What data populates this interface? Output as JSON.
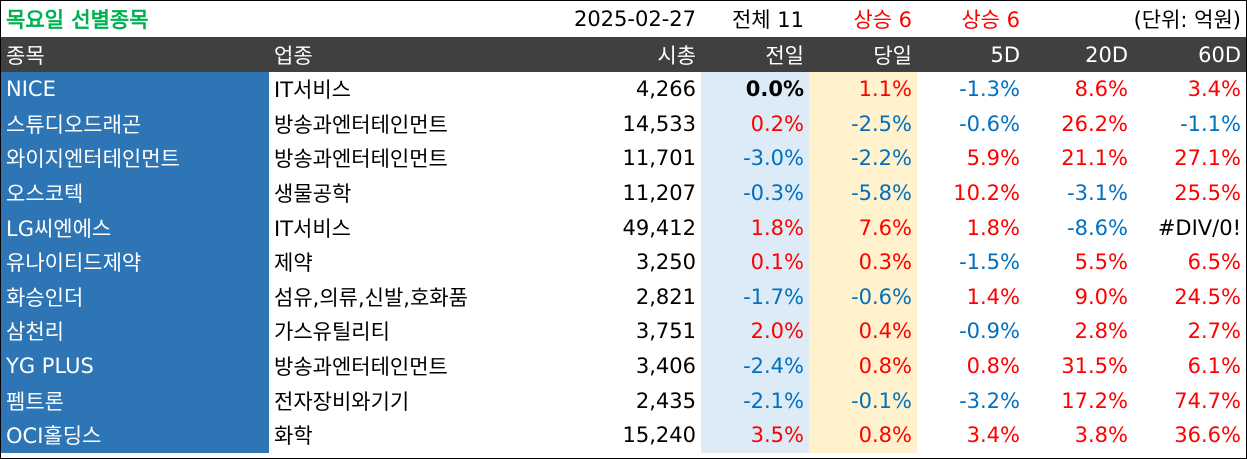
{
  "title": {
    "name": "목요일 선별종목",
    "date": "2025-02-27",
    "total": "전체 11",
    "up_count_1": "상승 6",
    "up_count_2": "상승 6",
    "unit": "(단위: 억원)"
  },
  "colors": {
    "title_green": "#00b050",
    "header_bg": "#404040",
    "name_bg": "#2e75b6",
    "prev_bg": "#ddebf7",
    "today_bg": "#fff2cc",
    "up_red": "#ff0000",
    "down_blue": "#0070c0"
  },
  "headers": [
    "종목",
    "업종",
    "시총",
    "전일",
    "당일",
    "5D",
    "20D",
    "60D"
  ],
  "rows": [
    {
      "name": "NICE",
      "sector": "IT서비스",
      "cap": "4,266",
      "prev": "0.0%",
      "today": "1.1%",
      "d5": "-1.3%",
      "d20": "8.6%",
      "d60": "3.4%"
    },
    {
      "name": "스튜디오드래곤",
      "sector": "방송과엔터테인먼트",
      "cap": "14,533",
      "prev": "0.2%",
      "today": "-2.5%",
      "d5": "-0.6%",
      "d20": "26.2%",
      "d60": "-1.1%"
    },
    {
      "name": "와이지엔터테인먼트",
      "sector": "방송과엔터테인먼트",
      "cap": "11,701",
      "prev": "-3.0%",
      "today": "-2.2%",
      "d5": "5.9%",
      "d20": "21.1%",
      "d60": "27.1%"
    },
    {
      "name": "오스코텍",
      "sector": "생물공학",
      "cap": "11,207",
      "prev": "-0.3%",
      "today": "-5.8%",
      "d5": "10.2%",
      "d20": "-3.1%",
      "d60": "25.5%"
    },
    {
      "name": "LG씨엔에스",
      "sector": "IT서비스",
      "cap": "49,412",
      "prev": "1.8%",
      "today": "7.6%",
      "d5": "1.8%",
      "d20": "-8.6%",
      "d60": "#DIV/0!"
    },
    {
      "name": "유나이티드제약",
      "sector": "제약",
      "cap": "3,250",
      "prev": "0.1%",
      "today": "0.3%",
      "d5": "-1.5%",
      "d20": "5.5%",
      "d60": "6.5%"
    },
    {
      "name": "화승인더",
      "sector": "섬유,의류,신발,호화품",
      "cap": "2,821",
      "prev": "-1.7%",
      "today": "-0.6%",
      "d5": "1.4%",
      "d20": "9.0%",
      "d60": "24.5%"
    },
    {
      "name": "삼천리",
      "sector": "가스유틸리티",
      "cap": "3,751",
      "prev": "2.0%",
      "today": "0.4%",
      "d5": "-0.9%",
      "d20": "2.8%",
      "d60": "2.7%"
    },
    {
      "name": "YG PLUS",
      "sector": "방송과엔터테인먼트",
      "cap": "3,406",
      "prev": "-2.4%",
      "today": "0.8%",
      "d5": "0.8%",
      "d20": "31.5%",
      "d60": "6.1%"
    },
    {
      "name": "펨트론",
      "sector": "전자장비와기기",
      "cap": "2,435",
      "prev": "-2.1%",
      "today": "-0.1%",
      "d5": "-3.2%",
      "d20": "17.2%",
      "d60": "74.7%"
    },
    {
      "name": "OCI홀딩스",
      "sector": "화학",
      "cap": "15,240",
      "prev": "3.5%",
      "today": "0.8%",
      "d5": "3.4%",
      "d20": "3.8%",
      "d60": "36.6%"
    }
  ]
}
